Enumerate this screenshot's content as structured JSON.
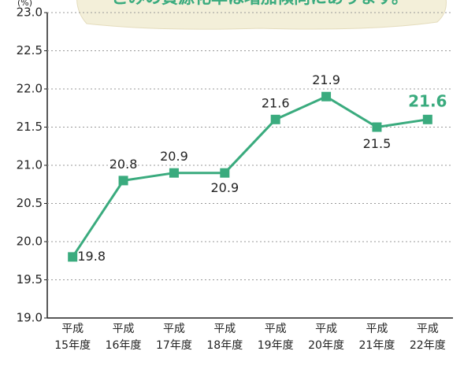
{
  "chart_data": {
    "type": "line",
    "banner": "ごみの資源化率は増加傾向にあります。",
    "y_unit": "(%)",
    "categories": [
      [
        "平成",
        "15年度"
      ],
      [
        "平成",
        "16年度"
      ],
      [
        "平成",
        "17年度"
      ],
      [
        "平成",
        "18年度"
      ],
      [
        "平成",
        "19年度"
      ],
      [
        "平成",
        "20年度"
      ],
      [
        "平成",
        "21年度"
      ],
      [
        "平成",
        "22年度"
      ]
    ],
    "series": [
      {
        "name": "資源化率",
        "color": "#3aab7e",
        "values": [
          19.8,
          20.8,
          20.9,
          20.9,
          21.6,
          21.9,
          21.5,
          21.6
        ]
      }
    ],
    "ylim": [
      19.0,
      23.0
    ],
    "yticks": [
      {
        "value": 19.0,
        "label": "19.0"
      },
      {
        "value": 19.5,
        "label": "19.5"
      },
      {
        "value": 20.0,
        "label": "20.0"
      },
      {
        "value": 20.5,
        "label": "20.5"
      },
      {
        "value": 21.0,
        "label": "21.0"
      },
      {
        "value": 21.5,
        "label": "21.5"
      },
      {
        "value": 22.0,
        "label": "22.0"
      },
      {
        "value": 22.5,
        "label": "22.5"
      },
      {
        "value": 23.0,
        "label": "23.0"
      }
    ],
    "grid": true
  }
}
